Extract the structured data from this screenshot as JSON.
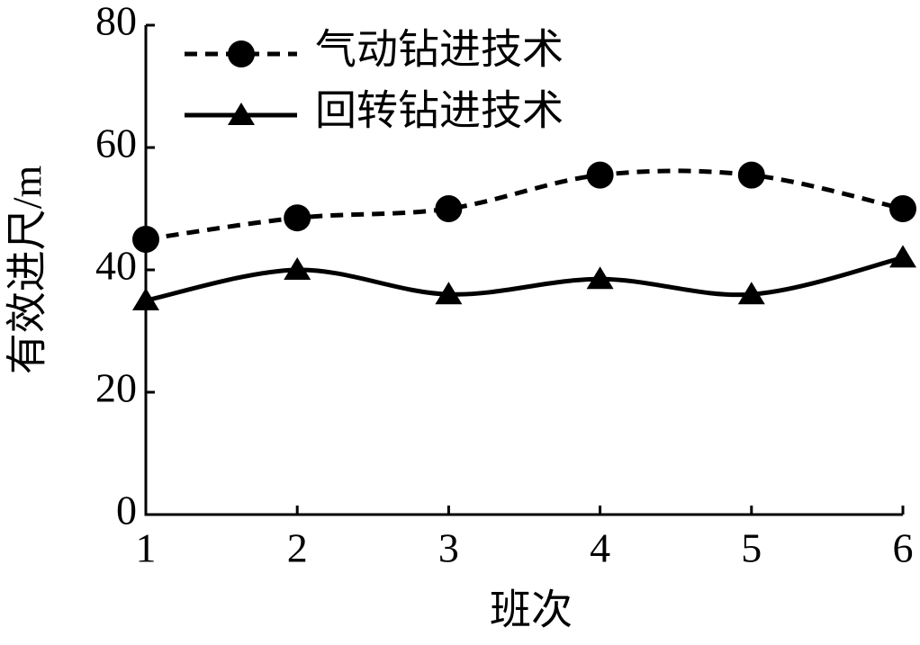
{
  "chart_data": {
    "type": "line",
    "x_label": "班次",
    "y_label": "有效进尺/m",
    "x": [
      1,
      2,
      3,
      4,
      5,
      6
    ],
    "series": [
      {
        "name": "气动钻进技术",
        "color": "#000000",
        "dash": true,
        "marker": "circle",
        "values": [
          45,
          48.5,
          50,
          55.5,
          55.5,
          50
        ]
      },
      {
        "name": "回转钻进技术",
        "color": "#000000",
        "dash": false,
        "marker": "triangle",
        "values": [
          35,
          40,
          36,
          38.5,
          36,
          42
        ]
      }
    ],
    "xlim": [
      1,
      6
    ],
    "xticks": [
      1,
      2,
      3,
      4,
      5,
      6
    ],
    "ylim": [
      0,
      80
    ],
    "yticks": [
      0,
      20,
      40,
      60,
      80
    ],
    "legend": "upper-left"
  }
}
